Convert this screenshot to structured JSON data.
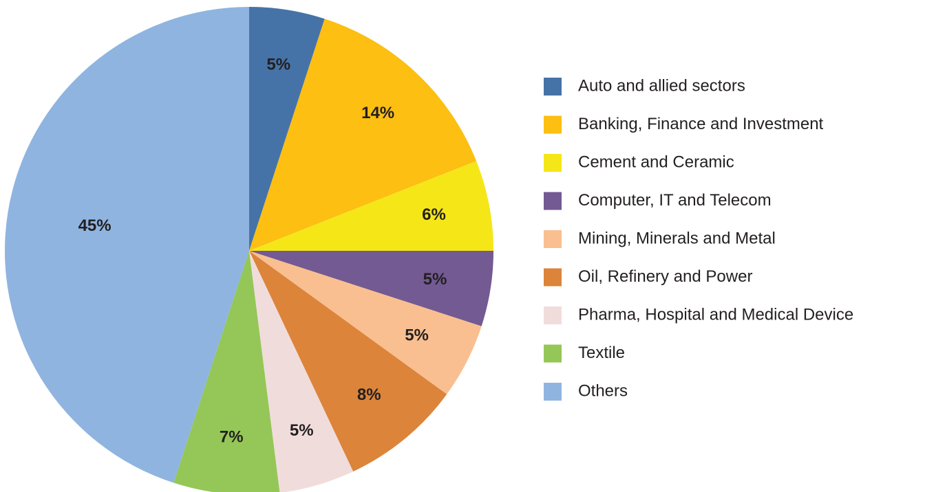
{
  "chart_data": {
    "type": "pie",
    "categories": [
      "Auto and allied sectors",
      "Banking, Finance and Investment",
      "Cement and Ceramic",
      "Computer, IT and Telecom",
      "Mining, Minerals and Metal",
      "Oil, Refinery and Power",
      "Pharma, Hospital and Medical Device",
      "Textile",
      "Others"
    ],
    "values": [
      5,
      14,
      6,
      5,
      5,
      8,
      5,
      7,
      45
    ],
    "value_labels": [
      "5%",
      "14%",
      "6%",
      "5%",
      "5%",
      "8%",
      "5%",
      "7%",
      "45%"
    ],
    "colors": [
      "#4673a7",
      "#fcbf12",
      "#f5e618",
      "#735a92",
      "#f9bf90",
      "#dc843a",
      "#f1dcdc",
      "#94c757",
      "#8fb4e0"
    ],
    "legend": "right"
  }
}
